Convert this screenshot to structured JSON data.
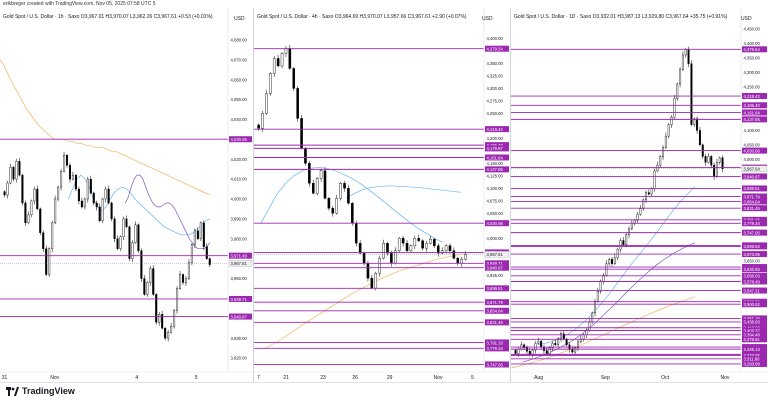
{
  "header": {
    "creator_line": "erikbreger created with TradingView.com, Nov 05, 2025 07:58 UTC 5"
  },
  "footer": {
    "brand": "TradingView"
  },
  "colors": {
    "line": "#9c27b0",
    "label_bg": "#9c27b0",
    "candle": "#000000",
    "ma_orange": "#f5b05a",
    "ma_blue": "#64b5f6",
    "ma_purple": "#7e57c2"
  },
  "chart_data": [
    {
      "type": "candlestick",
      "title": "Gold Spot / U.S. Dollar · 1h · Saxo  O3,967.01 H3,970.07 L3,962.26 C3,967.61 +0.53 (+0.01%)",
      "currency": "USD",
      "price_range": [
        3915,
        4087
      ],
      "y_ticks": [
        "4,080.00",
        "4,070.00",
        "4,060.00",
        "4,050.00",
        "4,040.00",
        "4,030.00",
        "4,020.00",
        "4,010.00",
        "4,000.00",
        "3,990.00",
        "3,980.00",
        "3,970.00",
        "3,960.00",
        "3,950.00",
        "3,940.00",
        "3,930.00",
        "3,920.00"
      ],
      "y_tick_values": [
        4080,
        4070,
        4060,
        4050,
        4040,
        4030,
        4020,
        4010,
        4000,
        3990,
        3980,
        3970,
        3960,
        3950,
        3940,
        3930,
        3920
      ],
      "x_ticks": [
        "31",
        "Nov",
        "4",
        "5"
      ],
      "x_tick_positions": [
        0.02,
        0.24,
        0.6,
        0.86
      ],
      "levels": [
        {
          "value": 4030.06,
          "label": "4,030.06"
        },
        {
          "value": 3971.49,
          "label": "3,971.49"
        },
        {
          "value": 3949.71,
          "label": "3,949.71"
        },
        {
          "value": 3940.87,
          "label": "3,940.87"
        }
      ],
      "current": {
        "value": 3967.61,
        "label": "3,967.61"
      },
      "closes": [
        4002,
        4008,
        4016,
        4010,
        4019,
        4012,
        3998,
        3988,
        3992,
        3999,
        4005,
        3995,
        3983,
        3975,
        3962,
        3975,
        3988,
        4000,
        4006,
        4014,
        4022,
        4017,
        4010,
        4012,
        4005,
        3999,
        3996,
        4000,
        4010,
        4003,
        3998,
        3996,
        3989,
        4000,
        4005,
        3998,
        3990,
        3980,
        3975,
        3981,
        3990,
        3986,
        3970,
        3978,
        3987,
        3974,
        3960,
        3952,
        3958,
        3965,
        3952,
        3938,
        3942,
        3935,
        3930,
        3933,
        3936,
        3944,
        3955,
        3962,
        3958,
        3960,
        3968,
        3977,
        3984,
        3980,
        3988,
        3976,
        3970,
        3967
      ],
      "ma_orange": [
        4070,
        4067,
        4062,
        4058,
        4054,
        4050,
        4046,
        4043,
        4040,
        4037,
        4035,
        4033,
        4031,
        4030,
        4030,
        4030,
        4029,
        4029,
        4028,
        4028,
        4027,
        4027,
        4026,
        4026,
        4026,
        4025,
        4024,
        4024,
        4023,
        4022,
        4021,
        4020,
        4019,
        4018,
        4017,
        4016,
        4015,
        4014,
        4013,
        4012,
        4011,
        4010,
        4009,
        4008,
        4007,
        4006,
        4005,
        4004,
        4003,
        4002
      ],
      "ma_blue": [
        4000,
        4005,
        4010,
        4012,
        4010,
        4006,
        4000,
        3996,
        3994,
        3996,
        4000,
        4003,
        4005,
        4006,
        4005,
        4003,
        4000,
        3998,
        3996,
        3994,
        3992,
        3990,
        3988,
        3986,
        3985,
        3984,
        3983,
        3982,
        3982,
        3982,
        3983,
        3985,
        3987,
        3989,
        3990
      ],
      "ma_purple": [
        3998,
        4001,
        4006,
        4010,
        4012,
        4012,
        4010,
        4006,
        4002,
        3999,
        3997,
        3996,
        3996,
        3997,
        3998,
        3998,
        3997,
        3995,
        3992,
        3989,
        3986,
        3983,
        3980,
        3978,
        3976,
        3975,
        3975,
        3975,
        3976,
        3978
      ]
    },
    {
      "type": "candlestick",
      "title": "Gold Spot / U.S. Dollar · 4h · Saxo  O3,964.69 H3,970.07 L3,957.66 C3,967.61 +2.90 (+0.07%)",
      "currency": "USD",
      "price_range": [
        3740,
        4425
      ],
      "y_ticks": [
        "4,400.00",
        "4,375.00",
        "4,350.00",
        "4,325.00",
        "4,300.00",
        "4,275.00",
        "4,250.00",
        "4,225.00",
        "4,200.00",
        "4,175.00",
        "4,150.00",
        "4,125.00",
        "4,100.00",
        "4,075.00",
        "4,050.00",
        "4,025.00",
        "4,000.00",
        "3,975.00",
        "3,950.00",
        "3,925.00",
        "3,900.00",
        "3,875.00",
        "3,850.00",
        "3,825.00",
        "3,800.00",
        "3,775.00",
        "3,750.00"
      ],
      "y_tick_values": [
        4400,
        4375,
        4350,
        4325,
        4300,
        4275,
        4250,
        4225,
        4200,
        4175,
        4150,
        4125,
        4100,
        4075,
        4050,
        4025,
        4000,
        3975,
        3950,
        3925,
        3900,
        3875,
        3850,
        3825,
        3800,
        3775,
        3750
      ],
      "x_ticks": [
        "7",
        "21",
        "23",
        "26",
        "29",
        "Nov",
        "5"
      ],
      "x_tick_positions": [
        0.02,
        0.14,
        0.3,
        0.44,
        0.59,
        0.8,
        0.95
      ],
      "levels": [
        {
          "value": 4379.54,
          "label": "4,379.54"
        },
        {
          "value": 4218.42,
          "label": "4,218.42"
        },
        {
          "value": 4186.4,
          "label": "4,186.40"
        },
        {
          "value": 4179.87,
          "label": "4,179.87"
        },
        {
          "value": 4161.64,
          "label": "4,161.64"
        },
        {
          "value": 4137.85,
          "label": "4,137.85"
        },
        {
          "value": 4030.06,
          "label": "4,030.06"
        },
        {
          "value": 3971.49,
          "label": "3,971.49"
        },
        {
          "value": 3949.71,
          "label": "3,949.71"
        },
        {
          "value": 3940.87,
          "label": "3,940.87"
        },
        {
          "value": 3899.51,
          "label": "3,899.51"
        },
        {
          "value": 3871.79,
          "label": "3,871.79"
        },
        {
          "value": 3854.64,
          "label": "3,854.64"
        },
        {
          "value": 3831.45,
          "label": "3,831.45"
        },
        {
          "value": 3791.16,
          "label": "3,791.16"
        },
        {
          "value": 3779.34,
          "label": "3,779.34"
        },
        {
          "value": 3747.05,
          "label": "3,747.05"
        }
      ],
      "current": {
        "value": 3967.61,
        "label": "3,967.61"
      },
      "closes": [
        4220,
        4250,
        4290,
        4330,
        4360,
        4345,
        4370,
        4380,
        4340,
        4300,
        4240,
        4180,
        4150,
        4110,
        4090,
        4120,
        4135,
        4080,
        4060,
        4050,
        4080,
        4110,
        4100,
        4070,
        4030,
        3990,
        3970,
        3950,
        3920,
        3900,
        3930,
        3960,
        3990,
        3970,
        3950,
        3975,
        4000,
        3990,
        3975,
        3985,
        4000,
        3995,
        3980,
        3990,
        3998,
        3985,
        3970,
        3975,
        3985,
        3975,
        3960,
        3950,
        3958,
        3967
      ],
      "ma_blue": [
        4030,
        4060,
        4090,
        4110,
        4125,
        4135,
        4140,
        4142,
        4140,
        4135,
        4128,
        4120,
        4110,
        4098,
        4085,
        4072,
        4058,
        4045,
        4032,
        4020,
        4010,
        4000,
        3992
      ],
      "ma_cyan": [
        4080,
        4090,
        4098,
        4102,
        4104,
        4105,
        4104,
        4103,
        4102,
        4100,
        4098,
        4096,
        4094,
        4092
      ],
      "ma_orange": [
        3780,
        3790,
        3802,
        3815,
        3828,
        3840,
        3852,
        3864,
        3876,
        3888,
        3898,
        3908,
        3918,
        3926,
        3934,
        3940,
        3946,
        3952,
        3958,
        3962,
        3966,
        3970
      ]
    },
    {
      "type": "candlestick",
      "title": "Gold Spot / U.S. Dollar · 1D · Saxo  O3,932.01 H3,987.13 L3,929.80 C3,967.64 +35.75 (+0.91%)",
      "currency": "USD",
      "price_range": [
        3280,
        4460
      ],
      "y_ticks": [
        "4,450.00",
        "4,400.00",
        "4,350.00",
        "4,300.00",
        "4,250.00",
        "4,200.00",
        "4,150.00",
        "4,100.00",
        "4,050.00",
        "4,000.00",
        "3,950.00",
        "3,900.00",
        "3,850.00",
        "3,800.00",
        "3,750.00",
        "3,700.00",
        "3,650.00",
        "3,600.00",
        "3,550.00",
        "3,500.00",
        "3,450.00",
        "3,400.00",
        "3,350.00",
        "3,300.00"
      ],
      "y_tick_values": [
        4450,
        4400,
        4350,
        4300,
        4250,
        4200,
        4150,
        4100,
        4050,
        4000,
        3950,
        3900,
        3850,
        3800,
        3750,
        3700,
        3650,
        3600,
        3550,
        3500,
        3450,
        3400,
        3350,
        3300
      ],
      "x_ticks": [
        "Aug",
        "Sep",
        "Oct",
        "Nov"
      ],
      "x_tick_positions": [
        0.12,
        0.41,
        0.67,
        0.93
      ],
      "levels": [
        {
          "value": 4379.54,
          "label": "4,379.54"
        },
        {
          "value": 4218.42,
          "label": "4,218.42"
        },
        {
          "value": 4186.4,
          "label": "4,186.40"
        },
        {
          "value": 4161.64,
          "label": "4,161.64"
        },
        {
          "value": 4137.85,
          "label": "4,137.85"
        },
        {
          "value": 4030.06,
          "label": "4,030.06"
        },
        {
          "value": 3971.49,
          "label": "3,971.49"
        },
        {
          "value": 3940.87,
          "label": "3,940.87"
        },
        {
          "value": 3899.51,
          "label": "3,899.51"
        },
        {
          "value": 3871.79,
          "label": "3,871.79"
        },
        {
          "value": 3854.64,
          "label": "3,854.64"
        },
        {
          "value": 3831.45,
          "label": "3,831.45"
        },
        {
          "value": 3791.16,
          "label": "3,791.16"
        },
        {
          "value": 3779.34,
          "label": "3,779.34"
        },
        {
          "value": 3747.05,
          "label": "3,747.05"
        },
        {
          "value": 3703.02,
          "label": "3,703.02"
        },
        {
          "value": 3699.53,
          "label": "3,699.53"
        },
        {
          "value": 3673.06,
          "label": "3,673.06"
        },
        {
          "value": 3628.31,
          "label": "3,628.31"
        },
        {
          "value": 3620.93,
          "label": "3,620.93"
        },
        {
          "value": 3598.03,
          "label": "3,598.03"
        },
        {
          "value": 3578.49,
          "label": "3,578.49"
        },
        {
          "value": 3547.21,
          "label": "3,547.21"
        },
        {
          "value": 3508.7,
          "label": "3,508.70"
        },
        {
          "value": 3500.02,
          "label": "3,500.02"
        },
        {
          "value": 3451.15,
          "label": "3,451.15"
        },
        {
          "value": 3438.93,
          "label": "3,438.93"
        },
        {
          "value": 3418.9,
          "label": "3,418.90"
        },
        {
          "value": 3409.37,
          "label": "3,409.37"
        },
        {
          "value": 3394.48,
          "label": "3,394.48"
        },
        {
          "value": 3378.91,
          "label": "3,378.91"
        },
        {
          "value": 3352.18,
          "label": "3,352.18"
        },
        {
          "value": 3345.13,
          "label": "3,345.13"
        },
        {
          "value": 3326.98,
          "label": "3,326.98"
        },
        {
          "value": 3323.55,
          "label": "3,323.55"
        },
        {
          "value": 3311.6,
          "label": "3,311.60"
        },
        {
          "value": 3293.99,
          "label": "3,293.99"
        }
      ],
      "current": {
        "value": 3967.64,
        "label": "3,967.64"
      },
      "closes": [
        3330,
        3345,
        3360,
        3350,
        3338,
        3325,
        3342,
        3365,
        3372,
        3352,
        3340,
        3330,
        3350,
        3365,
        3360,
        3382,
        3398,
        3380,
        3360,
        3345,
        3335,
        3350,
        3370,
        3380,
        3395,
        3410,
        3440,
        3470,
        3510,
        3545,
        3580,
        3600,
        3640,
        3655,
        3640,
        3660,
        3690,
        3720,
        3705,
        3740,
        3760,
        3780,
        3790,
        3810,
        3830,
        3860,
        3885,
        3880,
        3900,
        3960,
        3980,
        4010,
        4040,
        4080,
        4120,
        4145,
        4210,
        4260,
        4310,
        4360,
        4380,
        4330,
        4120,
        4140,
        4100,
        4050,
        4010,
        3990,
        4010,
        3980,
        3940,
        3990,
        4005,
        3967
      ],
      "ma_blue": [
        3360,
        3368,
        3380,
        3396,
        3420,
        3450,
        3486,
        3526,
        3570,
        3616,
        3660,
        3700,
        3744,
        3790,
        3834,
        3872,
        3906
      ],
      "ma_purple": [
        3300,
        3310,
        3322,
        3336,
        3352,
        3370,
        3392,
        3418,
        3448,
        3480,
        3512,
        3546,
        3578,
        3608,
        3636,
        3660,
        3680,
        3698,
        3712
      ],
      "ma_orange": [
        3280,
        3290,
        3300,
        3312,
        3326,
        3342,
        3358,
        3376,
        3394,
        3412,
        3430,
        3448,
        3466,
        3482,
        3498,
        3512,
        3526
      ]
    }
  ]
}
